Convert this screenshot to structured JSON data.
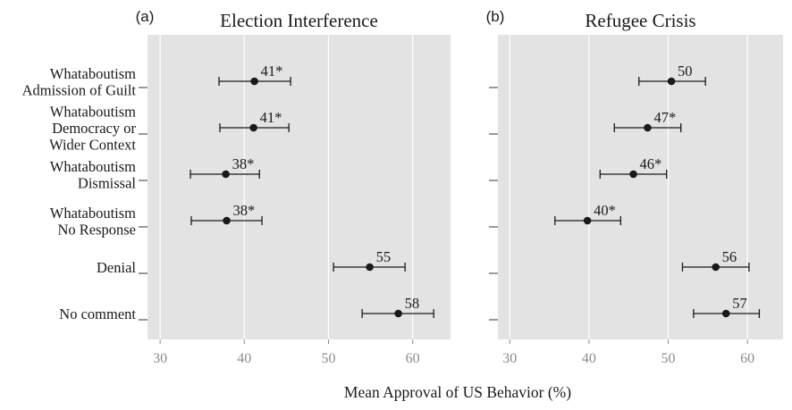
{
  "chart_data": {
    "type": "scatter",
    "subtype": "dot-and-whisker",
    "xlabel": "Mean Approval of US Behavior (%)",
    "xlim": [
      28.5,
      64.5
    ],
    "xticks": [
      30,
      40,
      50,
      60
    ],
    "grid": true,
    "categories": [
      [
        "Whataboutism",
        "Admission of Guilt"
      ],
      [
        "Whataboutism",
        "Democracy or",
        "Wider Context"
      ],
      [
        "Whataboutism",
        "Dismissal"
      ],
      [
        "Whataboutism",
        "No Response"
      ],
      [
        "Denial"
      ],
      [
        "No comment"
      ]
    ],
    "panels": [
      {
        "letter": "(a)",
        "title": "Election Interference",
        "points": [
          {
            "value": 41.2,
            "lo": 37.0,
            "hi": 45.5,
            "label": "41*"
          },
          {
            "value": 41.1,
            "lo": 37.1,
            "hi": 45.3,
            "label": "41*"
          },
          {
            "value": 37.8,
            "lo": 33.6,
            "hi": 41.8,
            "label": "38*"
          },
          {
            "value": 37.9,
            "lo": 33.7,
            "hi": 42.1,
            "label": "38*"
          },
          {
            "value": 54.9,
            "lo": 50.6,
            "hi": 59.1,
            "label": "55"
          },
          {
            "value": 58.3,
            "lo": 54.0,
            "hi": 62.5,
            "label": "58"
          }
        ]
      },
      {
        "letter": "(b)",
        "title": "Refugee Crisis",
        "points": [
          {
            "value": 50.4,
            "lo": 46.3,
            "hi": 54.7,
            "label": "50"
          },
          {
            "value": 47.4,
            "lo": 43.2,
            "hi": 51.6,
            "label": "47*"
          },
          {
            "value": 45.6,
            "lo": 41.4,
            "hi": 49.8,
            "label": "46*"
          },
          {
            "value": 39.8,
            "lo": 35.7,
            "hi": 44.0,
            "label": "40*"
          },
          {
            "value": 56.0,
            "lo": 51.8,
            "hi": 60.2,
            "label": "56"
          },
          {
            "value": 57.3,
            "lo": 53.2,
            "hi": 61.5,
            "label": "57"
          }
        ]
      }
    ]
  },
  "colors": {
    "panel_bg": "#e3e3e3",
    "grid": "#ffffff",
    "marker": "#1a1a1a",
    "tick_text": "#8a8a8a"
  }
}
